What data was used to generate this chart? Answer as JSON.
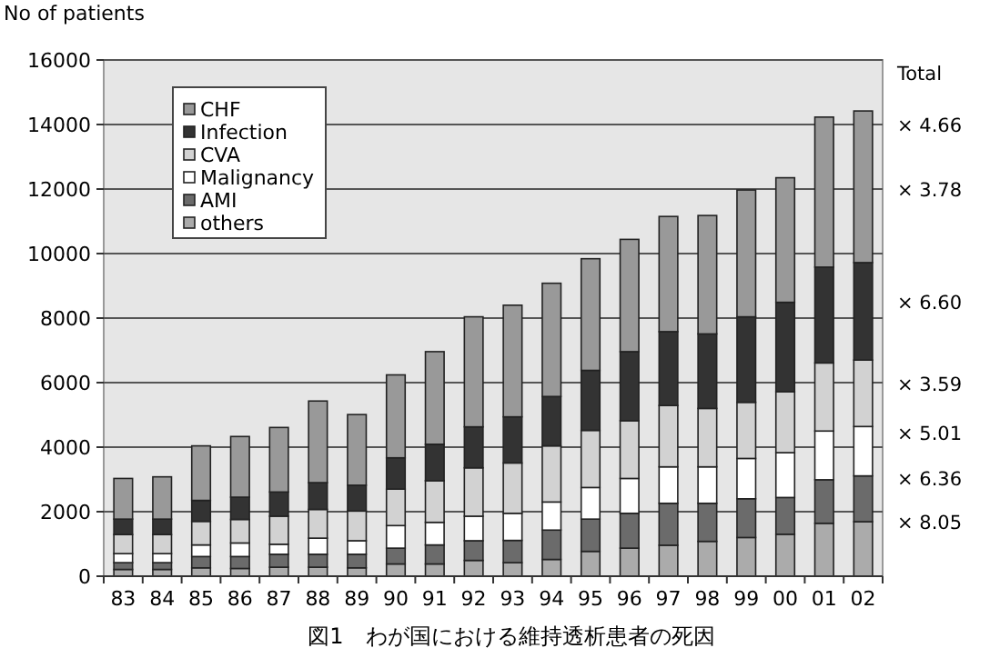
{
  "chart_data": {
    "type": "bar",
    "stacked": true,
    "title": "図1　わが国における維持透析患者の死因",
    "ylabel": "No of patients",
    "categories": [
      "83",
      "84",
      "85",
      "86",
      "87",
      "88",
      "89",
      "90",
      "91",
      "92",
      "93",
      "94",
      "95",
      "96",
      "97",
      "98",
      "99",
      "00",
      "01",
      "02"
    ],
    "series": [
      {
        "name": "others",
        "color": "#ababab",
        "values": [
          210,
          210,
          260,
          240,
          280,
          280,
          260,
          380,
          380,
          490,
          420,
          520,
          770,
          870,
          960,
          1080,
          1200,
          1300,
          1640,
          1690
        ]
      },
      {
        "name": "AMI",
        "color": "#6b6b6b",
        "values": [
          210,
          210,
          350,
          370,
          400,
          400,
          420,
          490,
          590,
          610,
          690,
          910,
          1000,
          1080,
          1300,
          1180,
          1200,
          1140,
          1350,
          1420
        ]
      },
      {
        "name": "Malignancy",
        "color": "#ffffff",
        "values": [
          280,
          280,
          360,
          420,
          310,
          500,
          420,
          700,
          700,
          760,
          840,
          870,
          980,
          1080,
          1130,
          1130,
          1250,
          1390,
          1510,
          1530
        ]
      },
      {
        "name": "CVA",
        "color": "#d2d2d2",
        "values": [
          590,
          590,
          730,
          730,
          870,
          890,
          920,
          1130,
          1290,
          1500,
          1560,
          1740,
          1770,
          1790,
          1900,
          1810,
          1740,
          1890,
          2110,
          2060
        ]
      },
      {
        "name": "Infection",
        "color": "#333333",
        "values": [
          480,
          480,
          650,
          690,
          750,
          830,
          800,
          970,
          1130,
          1270,
          1430,
          1530,
          1860,
          2140,
          2290,
          2310,
          2650,
          2770,
          2970,
          3020
        ]
      },
      {
        "name": "CHF",
        "color": "#999999",
        "values": [
          1260,
          1310,
          1690,
          1880,
          2000,
          2530,
          2190,
          2570,
          2870,
          3410,
          3460,
          3510,
          3460,
          3480,
          3570,
          3670,
          3930,
          3860,
          4650,
          4700
        ]
      }
    ],
    "ylim": [
      0,
      16000
    ],
    "yticks": [
      0,
      2000,
      4000,
      6000,
      8000,
      10000,
      12000,
      14000,
      16000
    ],
    "grid": "y",
    "legend": "top left",
    "annotations": [
      "Total",
      {
        "text": "× 4.66",
        "x": "02",
        "y": 14000
      },
      {
        "text": "× 3.78",
        "x": "02",
        "y": 12000
      },
      {
        "text": "× 6.60",
        "x": "02",
        "y": 8500
      },
      {
        "text": "× 3.59",
        "x": "02",
        "y": 5970
      },
      {
        "text": "× 5.01",
        "x": "02",
        "y": 4450
      },
      {
        "text": "× 6.36",
        "x": "02",
        "y": 3040
      },
      {
        "text": "× 8.05",
        "x": "02",
        "y": 1690
      }
    ]
  }
}
